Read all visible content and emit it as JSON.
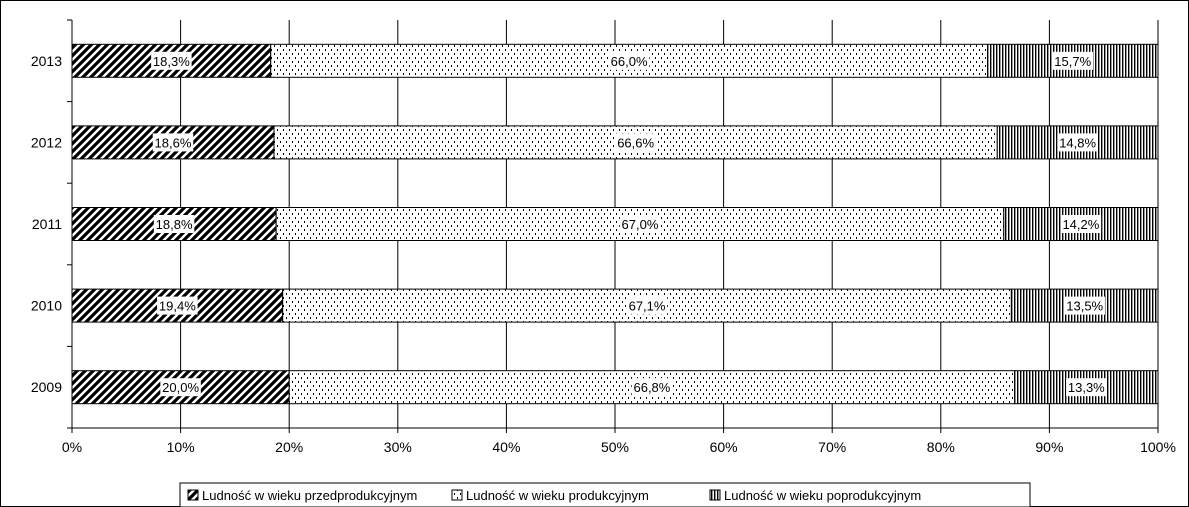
{
  "chart_data": {
    "type": "bar",
    "orientation": "horizontal",
    "stacked": "percent",
    "categories": [
      "2013",
      "2012",
      "2011",
      "2010",
      "2009"
    ],
    "series": [
      {
        "name": "Ludność w wieku przedprodukcyjnym",
        "values": [
          18.3,
          18.6,
          18.8,
          19.4,
          20.0
        ],
        "labels": [
          "18,3%",
          "18,6%",
          "18,8%",
          "19,4%",
          "20,0%"
        ],
        "pattern": "diagonal-hatch"
      },
      {
        "name": "Ludność w wieku produkcyjnym",
        "values": [
          66.0,
          66.6,
          67.0,
          67.1,
          66.8
        ],
        "labels": [
          "66,0%",
          "66,6%",
          "67,0%",
          "67,1%",
          "66,8%"
        ],
        "pattern": "dotted"
      },
      {
        "name": "Ludność w wieku poprodukcyjnym",
        "values": [
          15.7,
          14.8,
          14.2,
          13.5,
          13.3
        ],
        "labels": [
          "15,7%",
          "14,8%",
          "14,2%",
          "13,5%",
          "13,3%"
        ],
        "pattern": "vertical-lines"
      }
    ],
    "x_ticks": [
      "0%",
      "10%",
      "20%",
      "30%",
      "40%",
      "50%",
      "60%",
      "70%",
      "80%",
      "90%",
      "100%"
    ],
    "xlim": [
      0,
      100
    ],
    "grid": true,
    "legend": "bottom"
  }
}
